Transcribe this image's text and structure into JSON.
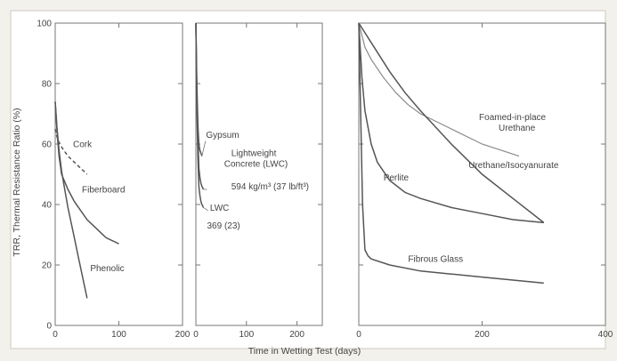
{
  "chart_data": {
    "type": "line",
    "ylabel": "TRR, Thermal Resistance Ratio (%)",
    "xlabel": "Time in Wetting Test (days)",
    "ylim": [
      0,
      100
    ],
    "yticks": [
      0,
      20,
      40,
      60,
      80,
      100
    ],
    "ytick_labels": [
      "0",
      "20",
      "40",
      "60",
      "80",
      "100"
    ],
    "panels": [
      {
        "xlim": [
          0,
          200
        ],
        "xticks": [
          0,
          100,
          200
        ],
        "xtick_labels": [
          "0",
          "100",
          "200"
        ],
        "series": [
          {
            "name": "Cork",
            "style": "dashed",
            "x": [
              0,
              2,
              5,
              10,
              20,
              30,
              40,
              50
            ],
            "y": [
              65,
              63,
              61,
              59,
              56,
              54,
              52,
              50
            ],
            "label_at": [
              28,
              59
            ]
          },
          {
            "name": "Fiberboard",
            "style": "solid",
            "x": [
              0,
              3,
              6,
              10,
              20,
              30,
              40,
              50,
              60,
              70,
              80,
              90,
              100
            ],
            "y": [
              74,
              64,
              56,
              50,
              45,
              41,
              38,
              35,
              33,
              31,
              29,
              28,
              27
            ],
            "label_at": [
              42,
              44
            ]
          },
          {
            "name": "Phenolic",
            "style": "solid",
            "x": [
              0,
              3,
              6,
              10,
              15,
              20,
              25,
              30,
              35,
              40,
              45,
              50
            ],
            "y": [
              74,
              65,
              58,
              51,
              45,
              39,
              34,
              29,
              24,
              19,
              14,
              9
            ],
            "label_at": [
              55,
              18
            ]
          }
        ]
      },
      {
        "xlim": [
          0,
          250
        ],
        "xticks": [
          0,
          100,
          200
        ],
        "xtick_labels": [
          "0",
          "100",
          "200"
        ],
        "series": [
          {
            "name": "Gypsum",
            "style": "solid",
            "x": [
              0,
              2,
              4,
              6,
              8,
              10,
              12
            ],
            "y": [
              100,
              80,
              66,
              60,
              58,
              57,
              56
            ],
            "label_at": [
              20,
              62
            ]
          },
          {
            "name": "Lightweight Concrete (LWC)",
            "style": "solid",
            "x": [
              0,
              2,
              4,
              6,
              8,
              10,
              12,
              15
            ],
            "y": [
              100,
              76,
              62,
              52,
              49,
              47,
              46,
              45
            ],
            "label_at": [
              70,
              56
            ]
          },
          {
            "name": "594 kg/m³ (37 lb/ft³)",
            "style": "none",
            "x": [],
            "y": [],
            "label_at": [
              70,
              45
            ]
          },
          {
            "name": "LWC",
            "style": "solid",
            "x": [
              0,
              2,
              4,
              6,
              8,
              10,
              12,
              15
            ],
            "y": [
              100,
              72,
              55,
              46,
              43,
              41,
              40,
              39
            ],
            "label_at": [
              28,
              38
            ]
          },
          {
            "name": "369 (23)",
            "style": "none",
            "x": [],
            "y": [],
            "label_at": [
              22,
              32
            ]
          }
        ]
      },
      {
        "xlim": [
          0,
          400
        ],
        "xticks": [
          0,
          200,
          400
        ],
        "xtick_labels": [
          "0",
          "200",
          "400"
        ],
        "series": [
          {
            "name": "Foamed-in-place Urethane",
            "style": "solid",
            "light": true,
            "x": [
              0,
              10,
              20,
              40,
              60,
              80,
              100,
              150,
              200,
              260
            ],
            "y": [
              100,
              92,
              88,
              82,
              77,
              73,
              70,
              65,
              60,
              56
            ],
            "label_at": [
              195,
              68
            ]
          },
          {
            "name": "Urethane/Isocyanurate",
            "style": "solid",
            "x": [
              0,
              25,
              50,
              75,
              100,
              150,
              200,
              250,
              300
            ],
            "y": [
              100,
              92,
              84,
              77,
              71,
              60,
              50,
              42,
              34
            ],
            "label_at": [
              178,
              52
            ]
          },
          {
            "name": "Perlite",
            "style": "solid",
            "x": [
              0,
              5,
              10,
              20,
              30,
              50,
              75,
              100,
              150,
              200,
              250,
              300
            ],
            "y": [
              100,
              82,
              71,
              60,
              54,
              48,
              44,
              42,
              39,
              37,
              35,
              34
            ],
            "label_at": [
              40,
              48
            ]
          },
          {
            "name": "Fibrous Glass",
            "style": "solid",
            "x": [
              0,
              3,
              6,
              10,
              15,
              20,
              50,
              100,
              150,
              200,
              250,
              300
            ],
            "y": [
              100,
              70,
              40,
              25,
              23,
              22,
              20,
              18,
              17,
              16,
              15,
              14
            ],
            "label_at": [
              80,
              21
            ]
          }
        ]
      }
    ]
  }
}
